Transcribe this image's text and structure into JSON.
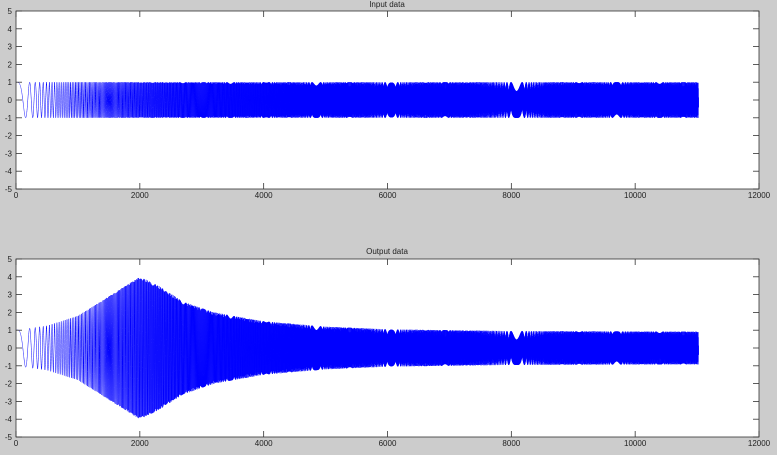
{
  "chart_data": [
    {
      "type": "line",
      "title": "Input data",
      "xlim": [
        0,
        12000
      ],
      "ylim": [
        -5,
        5
      ],
      "xticks": [
        0,
        2000,
        4000,
        6000,
        8000,
        10000,
        12000
      ],
      "yticks": [
        5,
        4,
        3,
        2,
        1,
        0,
        -1,
        -2,
        -3,
        -4,
        -5
      ],
      "grid": false,
      "series": [
        {
          "color": "#0000ff",
          "signal": "chirp",
          "x_range": [
            0,
            11025
          ],
          "envelope": [
            [
              0,
              1
            ],
            [
              11025,
              1
            ]
          ]
        }
      ]
    },
    {
      "type": "line",
      "title": "Output data",
      "xlim": [
        0,
        12000
      ],
      "ylim": [
        -5,
        5
      ],
      "xticks": [
        0,
        2000,
        4000,
        6000,
        8000,
        10000,
        12000
      ],
      "yticks": [
        5,
        4,
        3,
        2,
        1,
        0,
        -1,
        -2,
        -3,
        -4,
        -5
      ],
      "grid": false,
      "series": [
        {
          "color": "#0000ff",
          "signal": "chirp",
          "x_range": [
            0,
            11025
          ],
          "envelope": [
            [
              0,
              1
            ],
            [
              500,
              1.25
            ],
            [
              1000,
              1.8
            ],
            [
              1500,
              2.9
            ],
            [
              2000,
              4
            ],
            [
              2300,
              3.5
            ],
            [
              2700,
              2.6
            ],
            [
              3200,
              2.0
            ],
            [
              4000,
              1.5
            ],
            [
              5000,
              1.2
            ],
            [
              6000,
              1.05
            ],
            [
              8000,
              0.95
            ],
            [
              11025,
              0.92
            ]
          ]
        }
      ]
    }
  ]
}
